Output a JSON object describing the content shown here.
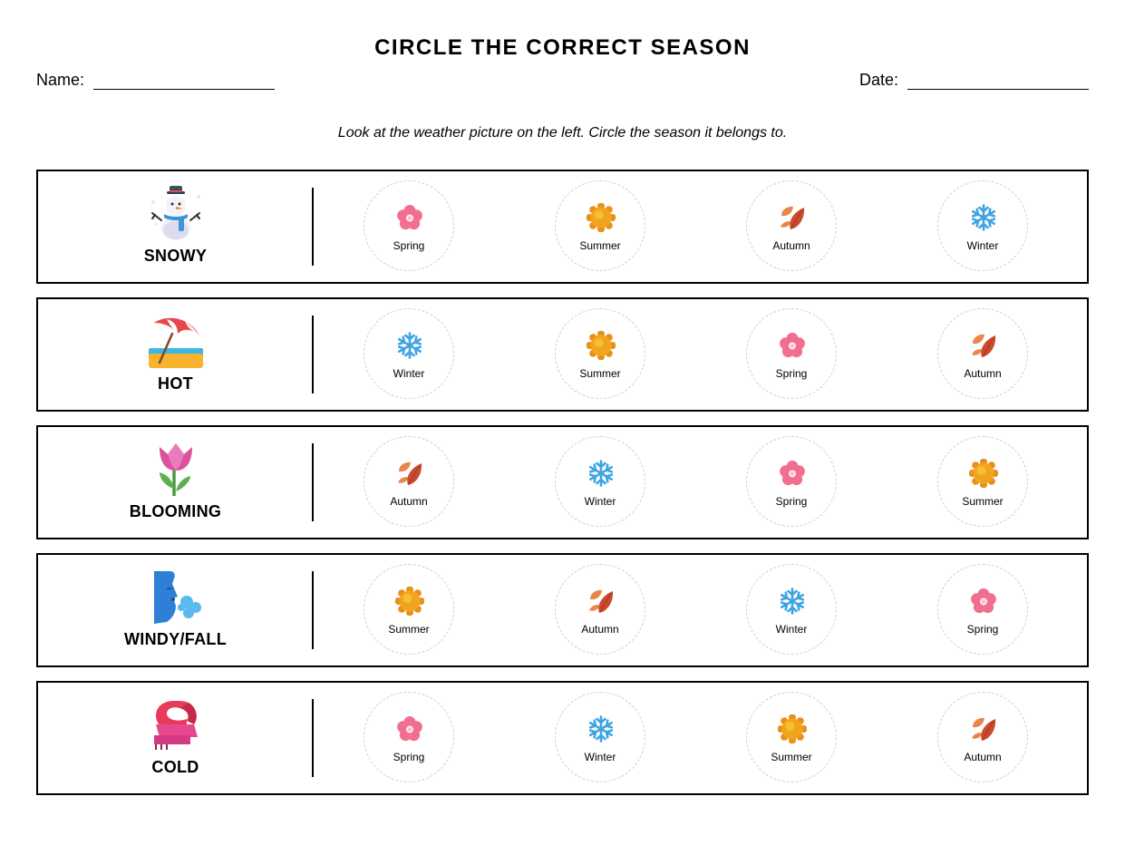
{
  "worksheet": {
    "title": "CIRCLE THE CORRECT SEASON",
    "name_label": "Name:",
    "date_label": "Date:",
    "instructions": "Look at the weather picture on the left. Circle the season it belongs to."
  },
  "rows": [
    {
      "weather": "SNOWY",
      "icon": "snowman-icon",
      "options": [
        {
          "label": "Spring",
          "icon": "blossom-icon"
        },
        {
          "label": "Summer",
          "icon": "sun-icon"
        },
        {
          "label": "Autumn",
          "icon": "fallen-leaves-icon"
        },
        {
          "label": "Winter",
          "icon": "snowflake-icon"
        }
      ]
    },
    {
      "weather": "HOT",
      "icon": "beach-umbrella-icon",
      "options": [
        {
          "label": "Winter",
          "icon": "snowflake-icon"
        },
        {
          "label": "Summer",
          "icon": "sun-icon"
        },
        {
          "label": "Spring",
          "icon": "blossom-icon"
        },
        {
          "label": "Autumn",
          "icon": "fallen-leaves-icon"
        }
      ]
    },
    {
      "weather": "BLOOMING",
      "icon": "tulip-icon",
      "options": [
        {
          "label": "Autumn",
          "icon": "fallen-leaves-icon"
        },
        {
          "label": "Winter",
          "icon": "snowflake-icon"
        },
        {
          "label": "Spring",
          "icon": "blossom-icon"
        },
        {
          "label": "Summer",
          "icon": "sun-icon"
        }
      ]
    },
    {
      "weather": "WINDY/FALL",
      "icon": "wind-face-icon",
      "options": [
        {
          "label": "Summer",
          "icon": "sun-icon"
        },
        {
          "label": "Autumn",
          "icon": "fallen-leaves-icon"
        },
        {
          "label": "Winter",
          "icon": "snowflake-icon"
        },
        {
          "label": "Spring",
          "icon": "blossom-icon"
        }
      ]
    },
    {
      "weather": "COLD",
      "icon": "scarf-icon",
      "options": [
        {
          "label": "Spring",
          "icon": "blossom-icon"
        },
        {
          "label": "Winter",
          "icon": "snowflake-icon"
        },
        {
          "label": "Summer",
          "icon": "sun-icon"
        },
        {
          "label": "Autumn",
          "icon": "fallen-leaves-icon"
        }
      ]
    }
  ],
  "colors": {
    "blossom": "#f06e8e",
    "sun": "#f2a51c",
    "leaf_dark": "#c94a2e",
    "leaf_light": "#e9874a",
    "snowflake": "#3fa3e3"
  }
}
